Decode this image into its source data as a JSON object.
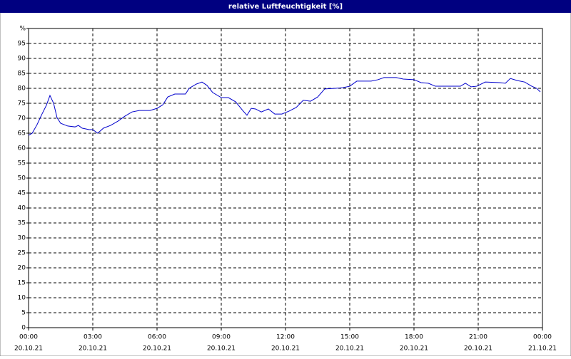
{
  "chart_data": {
    "type": "line",
    "title": "relative Luftfeuchtigkeit [%]",
    "x": [
      0,
      0.17,
      0.4,
      0.6,
      0.83,
      1.0,
      1.17,
      1.33,
      1.5,
      1.83,
      2.17,
      2.33,
      2.5,
      2.83,
      3.0,
      3.23,
      3.5,
      3.83,
      4.17,
      4.5,
      4.83,
      5.17,
      5.67,
      6.0,
      6.27,
      6.5,
      6.83,
      7.33,
      7.5,
      7.83,
      8.1,
      8.33,
      8.6,
      9.0,
      9.33,
      9.67,
      10.0,
      10.2,
      10.4,
      10.6,
      10.87,
      11.2,
      11.5,
      11.83,
      12.17,
      12.5,
      12.83,
      13.17,
      13.5,
      13.83,
      14.33,
      14.67,
      15.0,
      15.33,
      16.0,
      16.33,
      16.6,
      17.17,
      17.5,
      18.0,
      18.33,
      18.67,
      19.0,
      20.17,
      20.4,
      20.67,
      20.93,
      21.33,
      22.0,
      22.27,
      22.5,
      22.83,
      23.17,
      23.5,
      23.73,
      23.9
    ],
    "series": [
      {
        "color": "#0000cc",
        "values": [
          64.3,
          65,
          67.9,
          71,
          74.3,
          77.6,
          75,
          70.2,
          68.3,
          67.4,
          67.1,
          67.6,
          66.7,
          66.2,
          66.2,
          65,
          66.7,
          67.6,
          69,
          70.7,
          72.1,
          72.6,
          72.6,
          73.3,
          74.5,
          77.1,
          78.1,
          78.1,
          80,
          81.4,
          82.1,
          81,
          78.6,
          76.9,
          76.9,
          75.5,
          72.6,
          71,
          73.3,
          73.1,
          72.1,
          73.1,
          71.4,
          71.4,
          72.4,
          73.6,
          76,
          75.7,
          77.1,
          79.8,
          80,
          80.2,
          80.7,
          82.4,
          82.4,
          82.9,
          83.6,
          83.6,
          83.1,
          82.9,
          81.9,
          81.7,
          80.7,
          80.7,
          81.7,
          80.5,
          80.7,
          82.1,
          81.9,
          81.7,
          83.3,
          82.6,
          82.1,
          80.7,
          80,
          78.8
        ]
      }
    ],
    "xlim": [
      0,
      24
    ],
    "xticks": [
      {
        "value": 0,
        "label": "00:00"
      },
      {
        "value": 3,
        "label": "03:00"
      },
      {
        "value": 6,
        "label": "06:00"
      },
      {
        "value": 9,
        "label": "09:00"
      },
      {
        "value": 12,
        "label": "12:00"
      },
      {
        "value": 15,
        "label": "15:00"
      },
      {
        "value": 18,
        "label": "18:00"
      },
      {
        "value": 21,
        "label": "21:00"
      },
      {
        "value": 24,
        "label": "00:00"
      }
    ],
    "xtick_dates": [
      "20.10.21",
      "20.10.21",
      "20.10.21",
      "20.10.21",
      "20.10.21",
      "20.10.21",
      "20.10.21",
      "20.10.21",
      "21.10.21"
    ],
    "ylim": [
      0,
      100
    ],
    "yticks": [
      0,
      5,
      10,
      15,
      20,
      25,
      30,
      35,
      40,
      45,
      50,
      55,
      60,
      65,
      70,
      75,
      80,
      85,
      90,
      95,
      {
        "value": 100,
        "label": "%"
      }
    ],
    "grid": true
  }
}
